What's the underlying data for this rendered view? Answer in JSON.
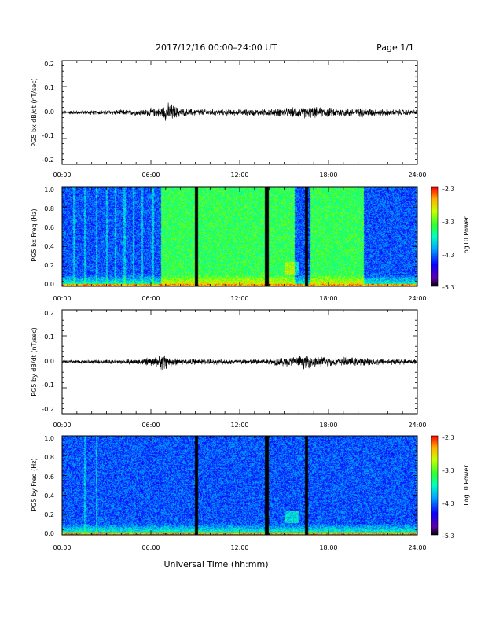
{
  "header": {
    "title": "2017/12/16  00:00–24:00 UT",
    "page": "Page 1/1"
  },
  "xlabel": "Universal Time (hh:mm)",
  "colors": {
    "trace": "#000000",
    "frame": "#000000",
    "gap": "#000000"
  },
  "chart_data": [
    {
      "type": "line",
      "ylabel": "PG5 bx dB/dt (nT/sec)",
      "x_tick_labels": [
        "00:00",
        "06:00",
        "12:00",
        "18:00",
        "24:00"
      ],
      "xlim": [
        0,
        24
      ],
      "y_tick_labels": [
        "-0.2",
        "-0.1",
        "0.0",
        "0.1",
        "0.2"
      ],
      "ylim": [
        -0.2,
        0.2
      ],
      "envelope": {
        "x_hours": [
          0,
          3,
          5,
          6.5,
          7,
          7.3,
          7.6,
          8,
          10,
          12,
          14,
          15.5,
          16.5,
          17,
          18,
          20,
          22,
          24
        ],
        "amplitude": [
          0.006,
          0.007,
          0.009,
          0.014,
          0.025,
          0.03,
          0.02,
          0.012,
          0.01,
          0.009,
          0.011,
          0.014,
          0.018,
          0.016,
          0.014,
          0.013,
          0.01,
          0.008
        ]
      }
    },
    {
      "type": "heatmap",
      "ylabel": "PG5 bx Freq (Hz)",
      "x_tick_labels": [
        "00:00",
        "06:00",
        "12:00",
        "18:00",
        "24:00"
      ],
      "xlim": [
        0,
        24
      ],
      "y_tick_labels": [
        "0.0",
        "0.2",
        "0.4",
        "0.6",
        "0.8",
        "1.0"
      ],
      "ylim": [
        0,
        1
      ],
      "colorbar": {
        "label": "Log10 Power",
        "tick_labels": [
          "-2.3",
          "-3.3",
          "-4.3",
          "-5.3"
        ],
        "range": [
          -5.3,
          -2.3
        ]
      },
      "data_gaps_hours": [
        [
          9.0,
          9.2
        ],
        [
          13.7,
          13.95
        ],
        [
          16.4,
          16.6
        ]
      ],
      "elevated_intervals_hours": [
        [
          6.7,
          15.7
        ],
        [
          16.8,
          20.4
        ]
      ],
      "vertical_striations_hours": [
        0.8,
        1.5,
        2.3,
        3.0,
        3.6,
        4.2,
        4.8,
        5.4,
        6.1
      ]
    },
    {
      "type": "line",
      "ylabel": "PG5 by dB/dt (nT/sec)",
      "x_tick_labels": [
        "00:00",
        "06:00",
        "12:00",
        "18:00",
        "24:00"
      ],
      "xlim": [
        0,
        24
      ],
      "y_tick_labels": [
        "-0.2",
        "-0.1",
        "0.0",
        "0.1",
        "0.2"
      ],
      "ylim": [
        -0.2,
        0.2
      ],
      "envelope": {
        "x_hours": [
          0,
          3,
          5,
          6.5,
          6.8,
          7.2,
          8,
          10,
          12,
          14,
          15.5,
          16.5,
          17,
          18,
          20,
          22,
          24
        ],
        "amplitude": [
          0.005,
          0.006,
          0.008,
          0.015,
          0.03,
          0.015,
          0.009,
          0.008,
          0.008,
          0.01,
          0.015,
          0.02,
          0.017,
          0.014,
          0.012,
          0.009,
          0.007
        ]
      }
    },
    {
      "type": "heatmap",
      "ylabel": "PG5 by Freq (Hz)",
      "x_tick_labels": [
        "00:00",
        "06:00",
        "12:00",
        "18:00",
        "24:00"
      ],
      "xlim": [
        0,
        24
      ],
      "y_tick_labels": [
        "0.0",
        "0.2",
        "0.4",
        "0.6",
        "0.8",
        "1.0"
      ],
      "ylim": [
        0,
        1
      ],
      "colorbar": {
        "label": "Log10 Power",
        "tick_labels": [
          "-2.3",
          "-3.3",
          "-4.3",
          "-5.3"
        ],
        "range": [
          -5.3,
          -2.3
        ]
      },
      "data_gaps_hours": [
        [
          9.0,
          9.2
        ],
        [
          13.7,
          13.95
        ],
        [
          16.4,
          16.6
        ]
      ],
      "elevated_intervals_hours": [],
      "vertical_striations_hours": [
        1.5,
        2.3
      ]
    }
  ]
}
